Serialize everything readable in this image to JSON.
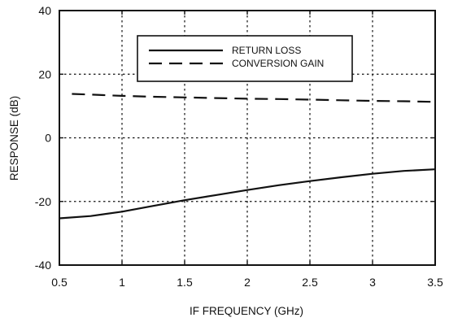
{
  "chart_data": {
    "type": "line",
    "xlabel": "IF FREQUENCY (GHz)",
    "ylabel": "RESPONSE (dB)",
    "xlim": [
      0.5,
      3.5
    ],
    "ylim": [
      -40,
      40
    ],
    "x_ticks": [
      0.5,
      1,
      1.5,
      2,
      2.5,
      3,
      3.5
    ],
    "x_tick_labels": [
      "0.5",
      "1",
      "1.5",
      "2",
      "2.5",
      "3",
      "3.5"
    ],
    "y_ticks": [
      -40,
      -20,
      0,
      20,
      40
    ],
    "y_tick_labels": [
      "-40",
      "-20",
      "0",
      "20",
      "40"
    ],
    "grid": true,
    "legend_position": "top-center",
    "series": [
      {
        "name": "RETURN LOSS",
        "style": "solid",
        "x": [
          0.5,
          0.75,
          1.0,
          1.25,
          1.5,
          1.75,
          2.0,
          2.25,
          2.5,
          2.75,
          3.0,
          3.25,
          3.5
        ],
        "y": [
          -25.3,
          -24.6,
          -23.2,
          -21.4,
          -19.6,
          -18.0,
          -16.4,
          -14.9,
          -13.6,
          -12.4,
          -11.3,
          -10.4,
          -9.9
        ]
      },
      {
        "name": "CONVERSION GAIN",
        "style": "dashed",
        "x": [
          0.6,
          0.75,
          1.0,
          1.25,
          1.5,
          1.75,
          2.0,
          2.25,
          2.5,
          2.75,
          3.0,
          3.25,
          3.5
        ],
        "y": [
          13.8,
          13.6,
          13.2,
          12.9,
          12.7,
          12.5,
          12.3,
          12.2,
          12.0,
          11.8,
          11.6,
          11.5,
          11.3
        ]
      }
    ]
  }
}
